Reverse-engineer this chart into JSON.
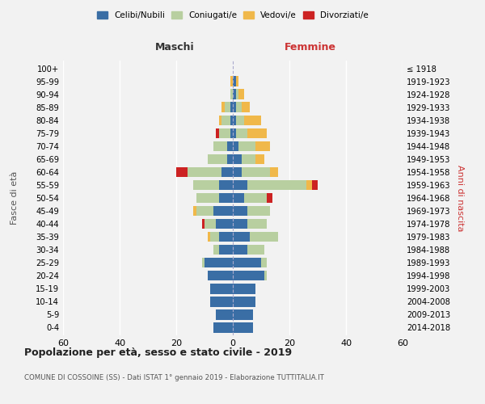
{
  "age_groups": [
    "0-4",
    "5-9",
    "10-14",
    "15-19",
    "20-24",
    "25-29",
    "30-34",
    "35-39",
    "40-44",
    "45-49",
    "50-54",
    "55-59",
    "60-64",
    "65-69",
    "70-74",
    "75-79",
    "80-84",
    "85-89",
    "90-94",
    "95-99",
    "100+"
  ],
  "birth_years": [
    "2014-2018",
    "2009-2013",
    "2004-2008",
    "1999-2003",
    "1994-1998",
    "1989-1993",
    "1984-1988",
    "1979-1983",
    "1974-1978",
    "1969-1973",
    "1964-1968",
    "1959-1963",
    "1954-1958",
    "1949-1953",
    "1944-1948",
    "1939-1943",
    "1934-1938",
    "1929-1933",
    "1924-1928",
    "1919-1923",
    "≤ 1918"
  ],
  "maschi": {
    "celibi": [
      7,
      6,
      8,
      8,
      9,
      10,
      5,
      5,
      6,
      7,
      5,
      5,
      4,
      2,
      2,
      1,
      1,
      1,
      0,
      0,
      0
    ],
    "coniugati": [
      0,
      0,
      0,
      0,
      0,
      1,
      2,
      3,
      4,
      6,
      8,
      9,
      12,
      7,
      5,
      4,
      3,
      2,
      1,
      0,
      0
    ],
    "vedovi": [
      0,
      0,
      0,
      0,
      0,
      0,
      0,
      1,
      0,
      1,
      0,
      0,
      0,
      0,
      0,
      0,
      1,
      1,
      0,
      1,
      0
    ],
    "divorziati": [
      0,
      0,
      0,
      0,
      0,
      0,
      0,
      0,
      1,
      0,
      0,
      0,
      4,
      0,
      0,
      1,
      0,
      0,
      0,
      0,
      0
    ]
  },
  "femmine": {
    "nubili": [
      7,
      7,
      8,
      8,
      11,
      10,
      5,
      6,
      5,
      5,
      4,
      5,
      3,
      3,
      2,
      1,
      1,
      1,
      1,
      1,
      0
    ],
    "coniugate": [
      0,
      0,
      0,
      0,
      1,
      2,
      6,
      10,
      7,
      8,
      8,
      21,
      10,
      5,
      6,
      4,
      3,
      2,
      1,
      0,
      0
    ],
    "vedove": [
      0,
      0,
      0,
      0,
      0,
      0,
      0,
      0,
      0,
      0,
      0,
      2,
      3,
      3,
      5,
      7,
      6,
      3,
      2,
      1,
      0
    ],
    "divorziate": [
      0,
      0,
      0,
      0,
      0,
      0,
      0,
      0,
      0,
      0,
      2,
      2,
      0,
      0,
      0,
      0,
      0,
      0,
      0,
      0,
      0
    ]
  },
  "colors": {
    "celibi": "#3a6ea5",
    "coniugati": "#b8cfa0",
    "vedovi": "#f0b84a",
    "divorziati": "#cc2222"
  },
  "title": "Popolazione per età, sesso e stato civile - 2019",
  "subtitle": "COMUNE DI COSSOINE (SS) - Dati ISTAT 1° gennaio 2019 - Elaborazione TUTTITALIA.IT",
  "xlabel_left": "Maschi",
  "xlabel_right": "Femmine",
  "ylabel_left": "Fasce di età",
  "ylabel_right": "Anni di nascita",
  "xlim": 60,
  "legend_labels": [
    "Celibi/Nubili",
    "Coniugati/e",
    "Vedovi/e",
    "Divorziati/e"
  ],
  "bg_color": "#f2f2f2"
}
